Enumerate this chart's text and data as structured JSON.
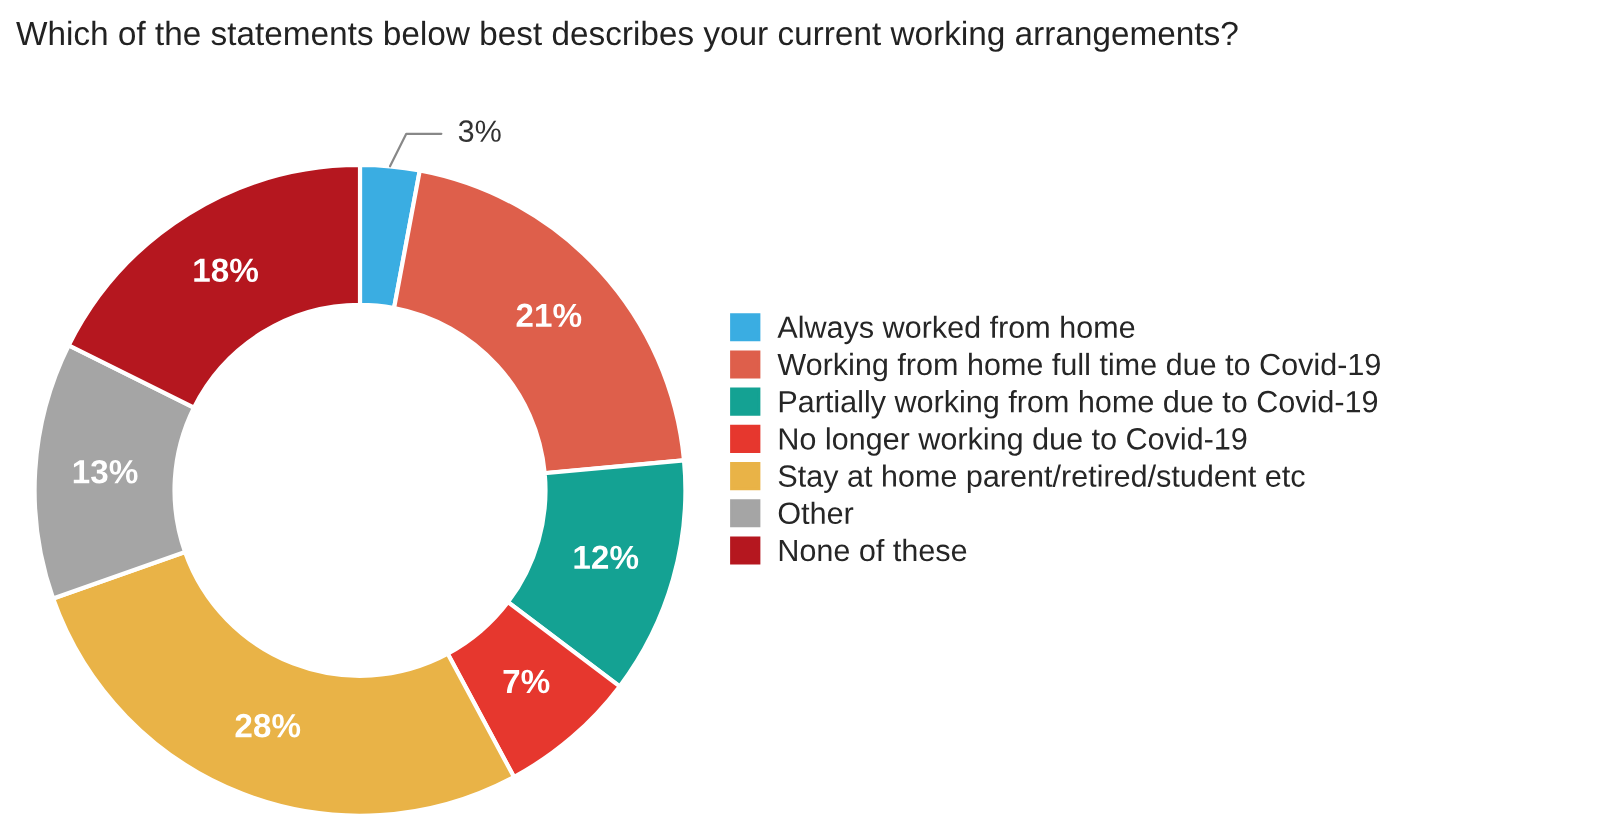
{
  "chart_data": {
    "type": "donut",
    "title": "Which of the statements below best describes your current working arrangements?",
    "categories": [
      "Always worked from home",
      "Working from home full time due to Covid-19",
      "Partially working from home due to Covid-19",
      "No longer working due to Covid-19",
      "Stay at home parent/retired/student etc",
      "Other",
      "None of these"
    ],
    "values": [
      3,
      21,
      12,
      7,
      28,
      13,
      18
    ],
    "colors": [
      "#3aade2",
      "#de5f4b",
      "#14a293",
      "#e6372e",
      "#e9b347",
      "#a5a5a5",
      "#b5171f"
    ],
    "value_labels": [
      "3%",
      "21%",
      "12%",
      "7%",
      "28%",
      "13%",
      "18%"
    ],
    "legend": "right"
  }
}
